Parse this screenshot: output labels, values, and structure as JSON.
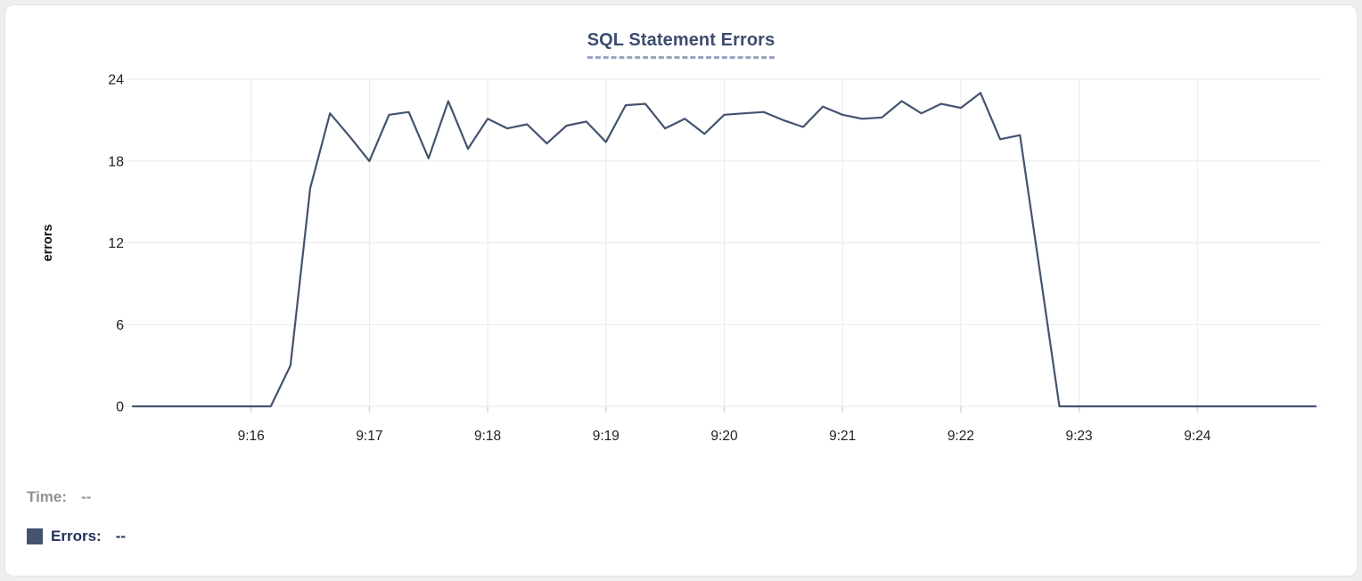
{
  "card": {
    "title": "SQL Statement Errors"
  },
  "legend": {
    "time_label": "Time:",
    "time_value": "--",
    "errors_label": "Errors:",
    "errors_value": "--",
    "swatch_color": "#44536e"
  },
  "colors": {
    "line": "#44536f",
    "title": "#3d4d6e",
    "grid": "#e9eaec",
    "axis_text": "#1f1f21",
    "legend_time": "#8e9196",
    "legend_errors": "#22325a"
  },
  "chart_data": {
    "type": "line",
    "title": "SQL Statement Errors",
    "xlabel": "",
    "ylabel": "errors",
    "ylim": [
      0,
      24
    ],
    "yticks": [
      0,
      6,
      12,
      18,
      24
    ],
    "xticks": [
      "9:16",
      "9:17",
      "9:18",
      "9:19",
      "9:20",
      "9:21",
      "9:22",
      "9:23",
      "9:24"
    ],
    "x_range": [
      "9:15:00",
      "9:25:00"
    ],
    "grid": true,
    "legend_position": "bottom-left",
    "series": [
      {
        "name": "Errors",
        "color": "#44536f",
        "x": [
          "9:15:00",
          "9:15:10",
          "9:15:20",
          "9:15:30",
          "9:15:40",
          "9:15:50",
          "9:16:00",
          "9:16:10",
          "9:16:20",
          "9:16:30",
          "9:16:40",
          "9:16:50",
          "9:17:00",
          "9:17:10",
          "9:17:20",
          "9:17:30",
          "9:17:40",
          "9:17:50",
          "9:18:00",
          "9:18:10",
          "9:18:20",
          "9:18:30",
          "9:18:40",
          "9:18:50",
          "9:19:00",
          "9:19:10",
          "9:19:20",
          "9:19:30",
          "9:19:40",
          "9:19:50",
          "9:20:00",
          "9:20:10",
          "9:20:20",
          "9:20:30",
          "9:20:40",
          "9:20:50",
          "9:21:00",
          "9:21:10",
          "9:21:20",
          "9:21:30",
          "9:21:40",
          "9:21:50",
          "9:22:00",
          "9:22:10",
          "9:22:20",
          "9:22:30",
          "9:22:40",
          "9:22:50",
          "9:23:00",
          "9:23:10",
          "9:23:20",
          "9:23:30",
          "9:23:40",
          "9:23:50",
          "9:24:00",
          "9:24:10",
          "9:24:20",
          "9:24:30",
          "9:24:40",
          "9:24:50",
          "9:25:00"
        ],
        "values": [
          0,
          0,
          0,
          0,
          0,
          0,
          0,
          0,
          3,
          16,
          21.5,
          19.8,
          18,
          21.4,
          21.6,
          18.2,
          22.4,
          18.9,
          21.1,
          20.4,
          20.7,
          19.3,
          20.6,
          20.9,
          19.4,
          22.1,
          22.2,
          20.4,
          21.1,
          20,
          21.4,
          21.5,
          21.6,
          21,
          20.5,
          22,
          21.4,
          21.1,
          21.2,
          22.4,
          21.5,
          22.2,
          21.9,
          23,
          19.6,
          19.9,
          10,
          0,
          0,
          0,
          0,
          0,
          0,
          0,
          0,
          0,
          0,
          0,
          0,
          0,
          0
        ]
      }
    ]
  }
}
